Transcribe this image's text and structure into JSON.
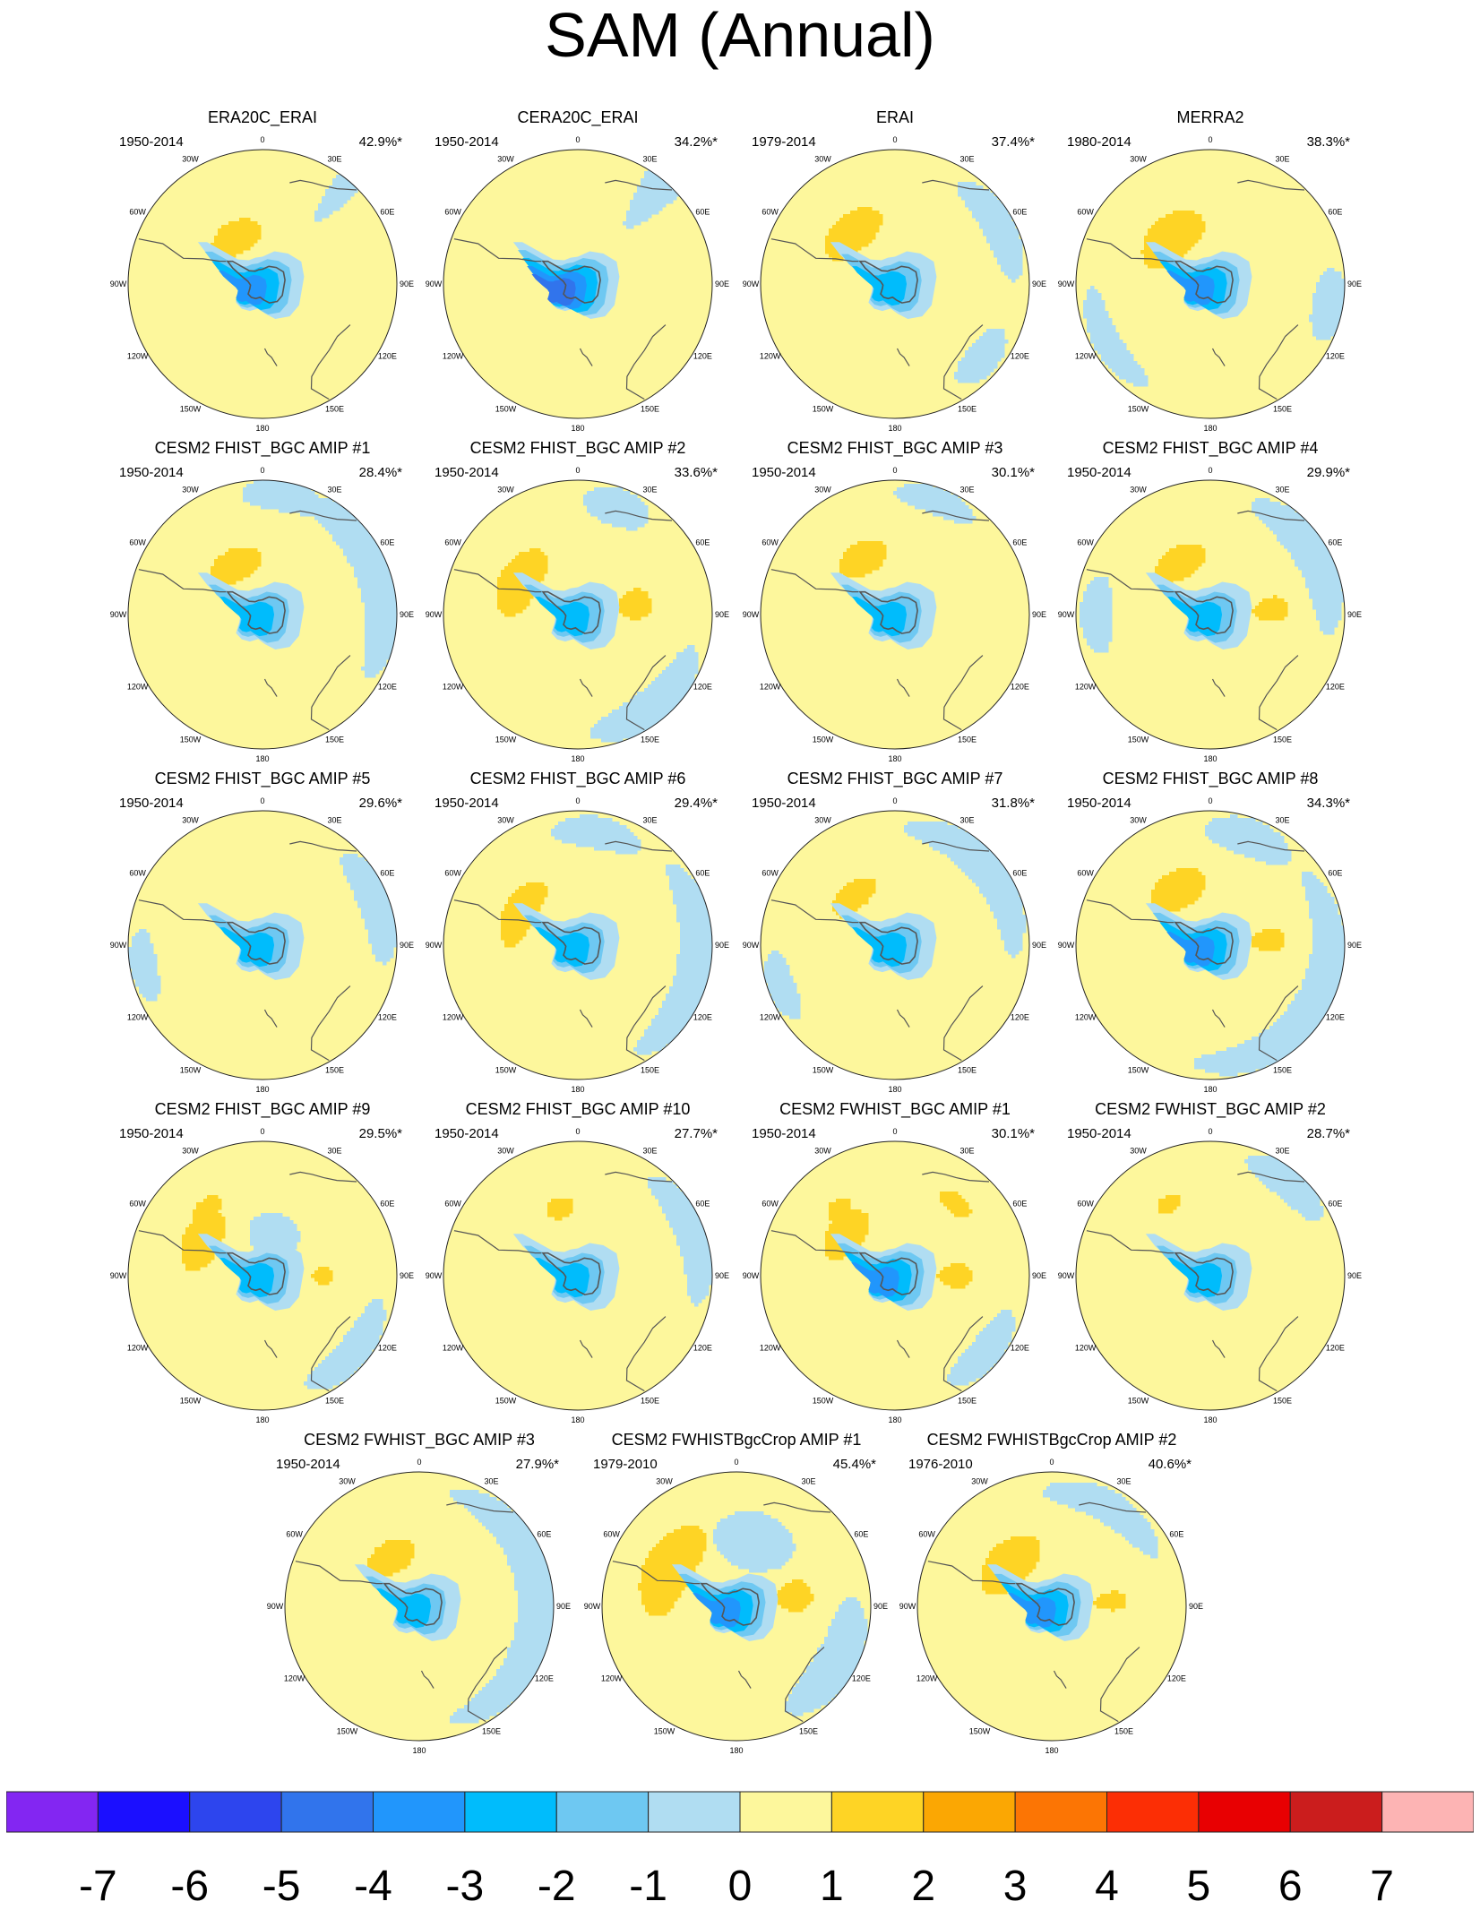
{
  "title": "SAM (Annual)",
  "colors": {
    "background": "#ffffff",
    "levels": [
      "#8326f2",
      "#1b0fff",
      "#2d45ee",
      "#3174ec",
      "#2196fc",
      "#00bcfc",
      "#6ec8f2",
      "#b0ddf2",
      "#fdf79c",
      "#fed425",
      "#fba703",
      "#fc7504",
      "#fc2e05",
      "#e80002",
      "#cb1d1d",
      "#fdb4b4"
    ]
  },
  "chart_data": {
    "type": "heatmap",
    "title": "SAM (Annual)",
    "projection": "south polar stereographic",
    "longitude_labels": [
      "0",
      "30E",
      "60E",
      "90E",
      "120E",
      "150E",
      "180",
      "150W",
      "120W",
      "90W",
      "60W",
      "30W"
    ],
    "colorbar": {
      "ticks": [
        "-7",
        "-6",
        "-5",
        "-4",
        "-3",
        "-2",
        "-1",
        "0",
        "1",
        "2",
        "3",
        "4",
        "5",
        "6",
        "7"
      ],
      "range": [
        -8,
        8
      ],
      "n_bins": 16
    },
    "panels": [
      {
        "title": "ERA20C_ERAI",
        "period": "1950-2014",
        "variance_explained": "42.9%*",
        "min_level": -4,
        "features": [
          {
            "lon": 330,
            "rad": 0.4,
            "a": 0.5,
            "b": 0.12,
            "v": 1.4
          },
          {
            "lon": 40,
            "rad": 0.95,
            "a": 0.1,
            "b": 0.35,
            "v": -1
          }
        ]
      },
      {
        "title": "CERA20C_ERAI",
        "period": "1950-2014",
        "variance_explained": "34.2%*",
        "min_level": -5,
        "features": [
          {
            "lon": 40,
            "rad": 0.95,
            "a": 0.15,
            "b": 0.4,
            "v": -1
          }
        ]
      },
      {
        "title": "ERAI",
        "period": "1979-2014",
        "variance_explained": "37.4%*",
        "min_level": -3,
        "features": [
          {
            "lon": 320,
            "rad": 0.5,
            "a": 0.5,
            "b": 0.14,
            "v": 1.5
          },
          {
            "lon": 130,
            "rad": 0.85,
            "a": 0.3,
            "b": 0.12,
            "v": -1
          },
          {
            "lon": 60,
            "rad": 0.88,
            "a": 0.5,
            "b": 0.12,
            "v": -1
          }
        ]
      },
      {
        "title": "MERRA2",
        "period": "1980-2014",
        "variance_explained": "38.3%*",
        "min_level": -4,
        "features": [
          {
            "lon": 320,
            "rad": 0.45,
            "a": 0.6,
            "b": 0.16,
            "v": 1.6
          },
          {
            "lon": 100,
            "rad": 0.9,
            "a": 0.3,
            "b": 0.13,
            "v": -1
          },
          {
            "lon": 240,
            "rad": 0.88,
            "a": 0.5,
            "b": 0.1,
            "v": -1
          }
        ]
      },
      {
        "title": "CESM2 FHIST_BGC AMIP #1",
        "period": "1950-2014",
        "variance_explained": "28.4%*",
        "min_level": -3,
        "features": [
          {
            "lon": 330,
            "rad": 0.42,
            "a": 0.5,
            "b": 0.12,
            "v": 1.4
          },
          {
            "lon": 70,
            "rad": 0.9,
            "a": 0.9,
            "b": 0.15,
            "v": -1
          },
          {
            "lon": 10,
            "rad": 0.9,
            "a": 0.35,
            "b": 0.12,
            "v": -1
          }
        ]
      },
      {
        "title": "CESM2 FHIST_BGC AMIP #2",
        "period": "1950-2014",
        "variance_explained": "33.6%*",
        "min_level": -3,
        "features": [
          {
            "lon": 300,
            "rad": 0.5,
            "a": 0.55,
            "b": 0.15,
            "v": 1.7
          },
          {
            "lon": 80,
            "rad": 0.43,
            "a": 0.25,
            "b": 0.12,
            "v": 1.5
          },
          {
            "lon": 140,
            "rad": 0.88,
            "a": 0.6,
            "b": 0.14,
            "v": -1
          },
          {
            "lon": 20,
            "rad": 0.85,
            "a": 0.3,
            "b": 0.14,
            "v": -1
          }
        ]
      },
      {
        "title": "CESM2 FHIST_BGC AMIP #3",
        "period": "1950-2014",
        "variance_explained": "30.1%*",
        "min_level": -3,
        "features": [
          {
            "lon": 330,
            "rad": 0.48,
            "a": 0.4,
            "b": 0.12,
            "v": 1.4
          },
          {
            "lon": 20,
            "rad": 0.9,
            "a": 0.35,
            "b": 0.1,
            "v": -1
          }
        ]
      },
      {
        "title": "CESM2 FHIST_BGC AMIP #4",
        "period": "1950-2014",
        "variance_explained": "29.9%*",
        "min_level": -3,
        "features": [
          {
            "lon": 330,
            "rad": 0.45,
            "a": 0.45,
            "b": 0.12,
            "v": 1.4
          },
          {
            "lon": 85,
            "rad": 0.45,
            "a": 0.2,
            "b": 0.13,
            "v": 1.5
          },
          {
            "lon": 60,
            "rad": 0.88,
            "a": 0.7,
            "b": 0.14,
            "v": -1
          },
          {
            "lon": 270,
            "rad": 0.85,
            "a": 0.35,
            "b": 0.12,
            "v": -1
          }
        ]
      },
      {
        "title": "CESM2 FHIST_BGC AMIP #5",
        "period": "1950-2014",
        "variance_explained": "29.6%*",
        "min_level": -3,
        "features": [
          {
            "lon": 70,
            "rad": 0.9,
            "a": 0.5,
            "b": 0.13,
            "v": -1
          },
          {
            "lon": 260,
            "rad": 0.9,
            "a": 0.3,
            "b": 0.1,
            "v": -1
          }
        ]
      },
      {
        "title": "CESM2 FHIST_BGC AMIP #6",
        "period": "1950-2014",
        "variance_explained": "29.4%*",
        "min_level": -3,
        "features": [
          {
            "lon": 300,
            "rad": 0.5,
            "a": 0.55,
            "b": 0.12,
            "v": 1.5
          },
          {
            "lon": 100,
            "rad": 0.9,
            "a": 0.9,
            "b": 0.15,
            "v": -1
          },
          {
            "lon": 10,
            "rad": 0.85,
            "a": 0.4,
            "b": 0.12,
            "v": -1
          }
        ]
      },
      {
        "title": "CESM2 FHIST_BGC AMIP #7",
        "period": "1950-2014",
        "variance_explained": "31.8%*",
        "min_level": -3,
        "features": [
          {
            "lon": 320,
            "rad": 0.48,
            "a": 0.4,
            "b": 0.1,
            "v": 1.4
          },
          {
            "lon": 50,
            "rad": 0.88,
            "a": 0.8,
            "b": 0.13,
            "v": -1
          },
          {
            "lon": 250,
            "rad": 0.9,
            "a": 0.3,
            "b": 0.1,
            "v": -1
          }
        ]
      },
      {
        "title": "CESM2 FHIST_BGC AMIP #8",
        "period": "1950-2014",
        "variance_explained": "34.3%*",
        "min_level": -4,
        "features": [
          {
            "lon": 330,
            "rad": 0.48,
            "a": 0.45,
            "b": 0.14,
            "v": 1.6
          },
          {
            "lon": 85,
            "rad": 0.43,
            "a": 0.2,
            "b": 0.13,
            "v": 1.6
          },
          {
            "lon": 120,
            "rad": 0.88,
            "a": 1.2,
            "b": 0.14,
            "v": -1
          },
          {
            "lon": 20,
            "rad": 0.85,
            "a": 0.4,
            "b": 0.14,
            "v": -1
          }
        ]
      },
      {
        "title": "CESM2 FHIST_BGC AMIP #9",
        "period": "1950-2014",
        "variance_explained": "29.5%*",
        "min_level": -3,
        "features": [
          {
            "lon": 300,
            "rad": 0.52,
            "a": 0.45,
            "b": 0.14,
            "v": 1.6
          },
          {
            "lon": 90,
            "rad": 0.45,
            "a": 0.15,
            "b": 0.08,
            "v": 1.4
          },
          {
            "lon": 320,
            "rad": 0.65,
            "a": 0.2,
            "b": 0.07,
            "v": 1.4
          },
          {
            "lon": 15,
            "rad": 0.28,
            "a": 0.6,
            "b": 0.2,
            "v": -1
          },
          {
            "lon": 130,
            "rad": 0.88,
            "a": 0.5,
            "b": 0.12,
            "v": -1
          }
        ]
      },
      {
        "title": "CESM2 FHIST_BGC AMIP #10",
        "period": "1950-2014",
        "variance_explained": "27.7%*",
        "min_level": -3,
        "features": [
          {
            "lon": 345,
            "rad": 0.52,
            "a": 0.2,
            "b": 0.08,
            "v": 1.4
          },
          {
            "lon": 70,
            "rad": 0.9,
            "a": 0.6,
            "b": 0.12,
            "v": -1
          }
        ]
      },
      {
        "title": "CESM2 FWHIST_BGC AMIP #1",
        "period": "1950-2014",
        "variance_explained": "30.1%*",
        "min_level": -4,
        "features": [
          {
            "lon": 310,
            "rad": 0.48,
            "a": 0.45,
            "b": 0.13,
            "v": 1.6
          },
          {
            "lon": 90,
            "rad": 0.44,
            "a": 0.2,
            "b": 0.13,
            "v": 1.6
          },
          {
            "lon": 320,
            "rad": 0.65,
            "a": 0.15,
            "b": 0.07,
            "v": 1.4
          },
          {
            "lon": 40,
            "rad": 0.7,
            "a": 0.2,
            "b": 0.07,
            "v": 1.4
          },
          {
            "lon": 130,
            "rad": 0.88,
            "a": 0.4,
            "b": 0.12,
            "v": -1
          }
        ]
      },
      {
        "title": "CESM2 FWHIST_BGC AMIP #2",
        "period": "1950-2014",
        "variance_explained": "28.7%*",
        "min_level": -3,
        "features": [
          {
            "lon": 330,
            "rad": 0.62,
            "a": 0.15,
            "b": 0.06,
            "v": 1.4
          },
          {
            "lon": 40,
            "rad": 0.9,
            "a": 0.4,
            "b": 0.12,
            "v": -1
          }
        ]
      },
      {
        "title": "CESM2 FWHIST_BGC AMIP #3",
        "period": "1950-2014",
        "variance_explained": "27.9%*",
        "min_level": -3,
        "features": [
          {
            "lon": 330,
            "rad": 0.42,
            "a": 0.45,
            "b": 0.12,
            "v": 1.4
          },
          {
            "lon": 90,
            "rad": 0.88,
            "a": 1.3,
            "b": 0.15,
            "v": -1
          }
        ]
      },
      {
        "title": "CESM2 FWHISTBgcCrop AMIP #1",
        "period": "1979-2010",
        "variance_explained": "45.4%*",
        "min_level": -4,
        "features": [
          {
            "lon": 300,
            "rad": 0.58,
            "a": 0.65,
            "b": 0.18,
            "v": 1.8
          },
          {
            "lon": 80,
            "rad": 0.43,
            "a": 0.25,
            "b": 0.14,
            "v": 1.7
          },
          {
            "lon": 120,
            "rad": 0.85,
            "a": 0.6,
            "b": 0.16,
            "v": -1
          },
          {
            "lon": 15,
            "rad": 0.5,
            "a": 0.6,
            "b": 0.22,
            "v": -1
          }
        ]
      },
      {
        "title": "CESM2 FWHISTBgcCrop AMIP #2",
        "period": "1976-2010",
        "variance_explained": "40.6%*",
        "min_level": -4,
        "features": [
          {
            "lon": 315,
            "rad": 0.45,
            "a": 0.6,
            "b": 0.16,
            "v": 1.7
          },
          {
            "lon": 85,
            "rad": 0.44,
            "a": 0.15,
            "b": 0.12,
            "v": 1.5
          },
          {
            "lon": 30,
            "rad": 0.85,
            "a": 0.6,
            "b": 0.12,
            "v": -1
          }
        ]
      }
    ]
  }
}
